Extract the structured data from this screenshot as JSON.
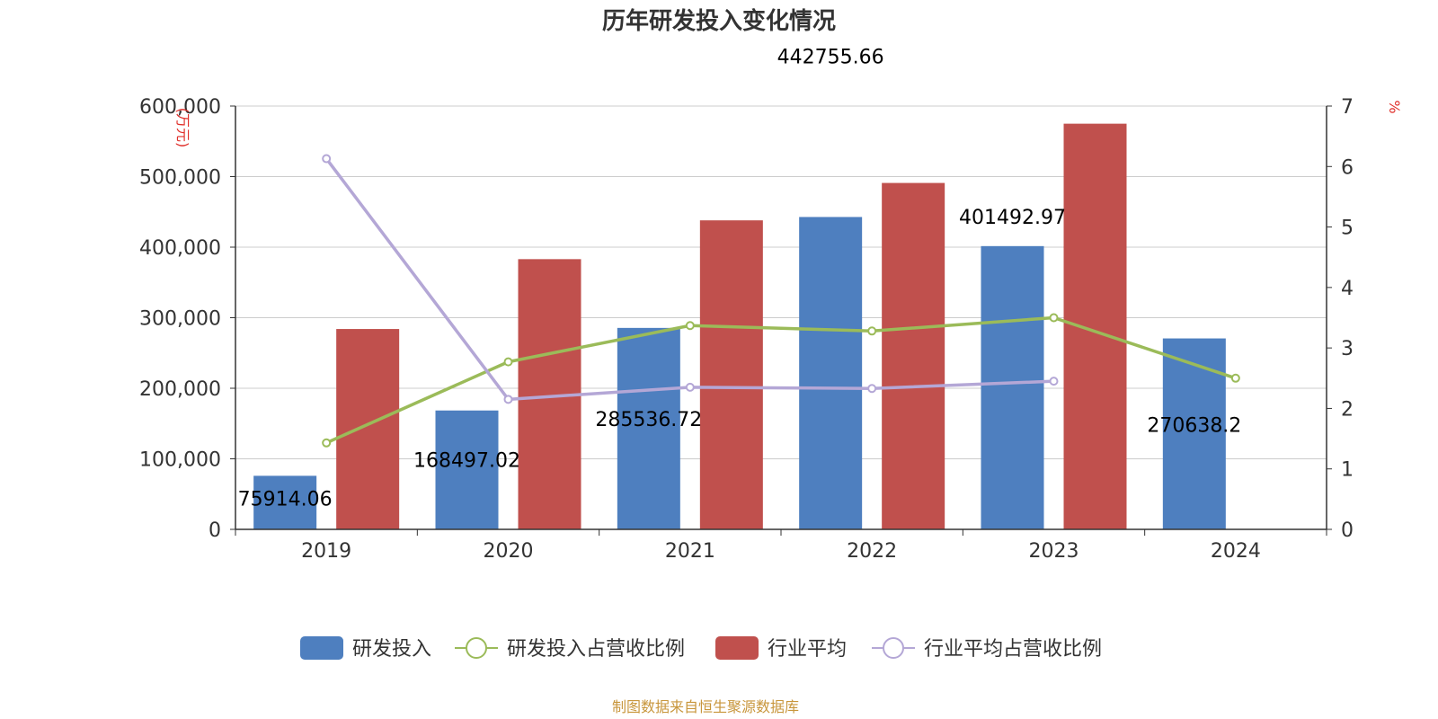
{
  "chart_data": {
    "type": "bar",
    "title": "历年研发投入变化情况",
    "categories": [
      "2019",
      "2020",
      "2021",
      "2022",
      "2023",
      "2024"
    ],
    "y_left": {
      "unit": "(万元)",
      "min": 0,
      "max": 600000,
      "ticks": [
        "0",
        "100,000",
        "200,000",
        "300,000",
        "400,000",
        "500,000",
        "600,000"
      ]
    },
    "y_right": {
      "unit": "%",
      "min": 0,
      "max": 7,
      "ticks": [
        "0",
        "1",
        "2",
        "3",
        "4",
        "5",
        "6",
        "7"
      ]
    },
    "series": [
      {
        "name": "研发投入",
        "kind": "bar",
        "axis": "left",
        "color": "#4e7fbf",
        "values": [
          75914.06,
          168497.02,
          285536.72,
          442755.66,
          401492.97,
          270638.2
        ],
        "labels": [
          "75914.06",
          "168497.02",
          "285536.72",
          "442755.66",
          "401492.97",
          "270638.2"
        ]
      },
      {
        "name": "研发投入占营收比例",
        "kind": "line",
        "axis": "right",
        "color": "#9bbb59",
        "values": [
          1.43,
          2.77,
          3.37,
          3.28,
          3.5,
          2.5
        ]
      },
      {
        "name": "行业平均",
        "kind": "bar",
        "axis": "left",
        "color": "#c0504d",
        "values": [
          284000,
          383000,
          438000,
          491000,
          575000,
          null
        ]
      },
      {
        "name": "行业平均占营收比例",
        "kind": "line",
        "axis": "right",
        "color": "#b4a7d6",
        "values": [
          6.13,
          2.15,
          2.35,
          2.33,
          2.45,
          null
        ]
      }
    ],
    "legend_position": "bottom",
    "grid": true,
    "source": "制图数据来自恒生聚源数据库"
  }
}
